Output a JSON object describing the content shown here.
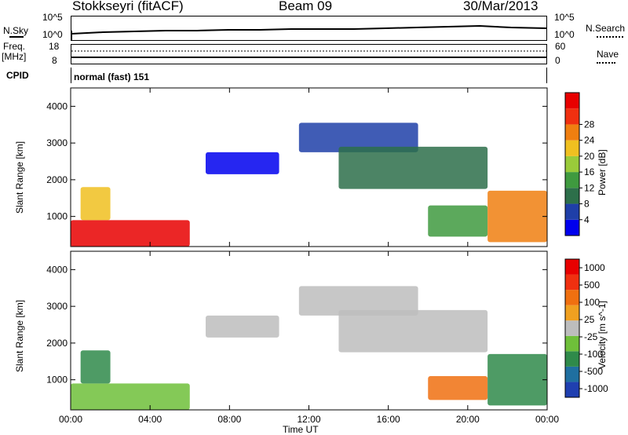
{
  "header": {
    "station": "Stokkseyri (fitACF)",
    "beam": "Beam 09",
    "date": "30/Mar/2013"
  },
  "top_panels": {
    "nsky_label": "N.Sky",
    "nsearch_label": "N.Search",
    "noise_tick_top": "10^5",
    "noise_tick_bottom": "10^0",
    "freq_label_line1": "Freq.",
    "freq_label_line2": "[MHz]",
    "freq_tick_top": "18",
    "freq_tick_bottom": "8",
    "nave_label": "Nave",
    "nave_tick_top": "60",
    "nave_tick_bottom": "0",
    "cpid_label": "CPID",
    "cpid_value": "normal (fast) 151"
  },
  "colors": {
    "power_scale": [
      "#0000ee",
      "#1f3fa8",
      "#2d6f4a",
      "#3f9a3f",
      "#9acb3a",
      "#f0c020",
      "#f07f10",
      "#f03010",
      "#e80000"
    ],
    "velocity_scale": [
      "#1f3fb0",
      "#1f6fa0",
      "#2f8a4a",
      "#6fbf3a",
      "#bdbdbd",
      "#f0a020",
      "#f07010",
      "#f03010",
      "#e80000"
    ]
  },
  "chart_data": [
    {
      "type": "heatmap",
      "name": "power",
      "ylabel": "Slant Range [km]",
      "xlabel": "",
      "colorbar_label": "Power [dB]",
      "colorbar_ticks": [
        "4",
        "8",
        "12",
        "16",
        "20",
        "24",
        "28"
      ],
      "y_ticks": [
        "1000",
        "2000",
        "3000",
        "4000"
      ],
      "x_ticks": [
        "00:00",
        "04:00",
        "08:00",
        "12:00",
        "16:00",
        "20:00",
        "00:00"
      ],
      "xlim_hours": [
        0,
        24
      ],
      "ylim_km": [
        180,
        4500
      ],
      "regions": [
        {
          "x": [
            0.0,
            6.0
          ],
          "y": [
            180,
            900
          ],
          "color_index": 8
        },
        {
          "x": [
            0.5,
            2.0
          ],
          "y": [
            900,
            1800
          ],
          "color_index": 5
        },
        {
          "x": [
            6.8,
            10.5
          ],
          "y": [
            2150,
            2750
          ],
          "color_index": 0
        },
        {
          "x": [
            11.5,
            17.5
          ],
          "y": [
            2750,
            3550
          ],
          "color_index": 1
        },
        {
          "x": [
            13.5,
            21.0
          ],
          "y": [
            1750,
            2900
          ],
          "color_index": 2
        },
        {
          "x": [
            18.0,
            21.0
          ],
          "y": [
            450,
            1300
          ],
          "color_index": 3
        },
        {
          "x": [
            21.0,
            24.0
          ],
          "y": [
            300,
            1700
          ],
          "color_index": 6
        }
      ]
    },
    {
      "type": "heatmap",
      "name": "velocity",
      "ylabel": "Slant Range [km]",
      "xlabel": "Time UT",
      "colorbar_label": "Velocity [m s^-1]",
      "colorbar_ticks": [
        "1000",
        "500",
        "100",
        "25",
        "-25",
        "-100",
        "-500",
        "-1000"
      ],
      "y_ticks": [
        "1000",
        "2000",
        "3000",
        "4000"
      ],
      "x_ticks": [
        "00:00",
        "04:00",
        "08:00",
        "12:00",
        "16:00",
        "20:00",
        "00:00"
      ],
      "xlim_hours": [
        0,
        24
      ],
      "ylim_km": [
        180,
        4500
      ],
      "regions": [
        {
          "x": [
            0.0,
            6.0
          ],
          "y": [
            180,
            900
          ],
          "color_index": 3
        },
        {
          "x": [
            0.5,
            2.0
          ],
          "y": [
            900,
            1800
          ],
          "color_index": 2
        },
        {
          "x": [
            6.8,
            10.5
          ],
          "y": [
            2150,
            2750
          ],
          "color_index": 4
        },
        {
          "x": [
            11.5,
            17.5
          ],
          "y": [
            2750,
            3550
          ],
          "color_index": 4
        },
        {
          "x": [
            13.5,
            21.0
          ],
          "y": [
            1750,
            2900
          ],
          "color_index": 4
        },
        {
          "x": [
            18.0,
            21.0
          ],
          "y": [
            450,
            1100
          ],
          "color_index": 6
        },
        {
          "x": [
            21.0,
            24.0
          ],
          "y": [
            300,
            1700
          ],
          "color_index": 2
        }
      ]
    }
  ]
}
